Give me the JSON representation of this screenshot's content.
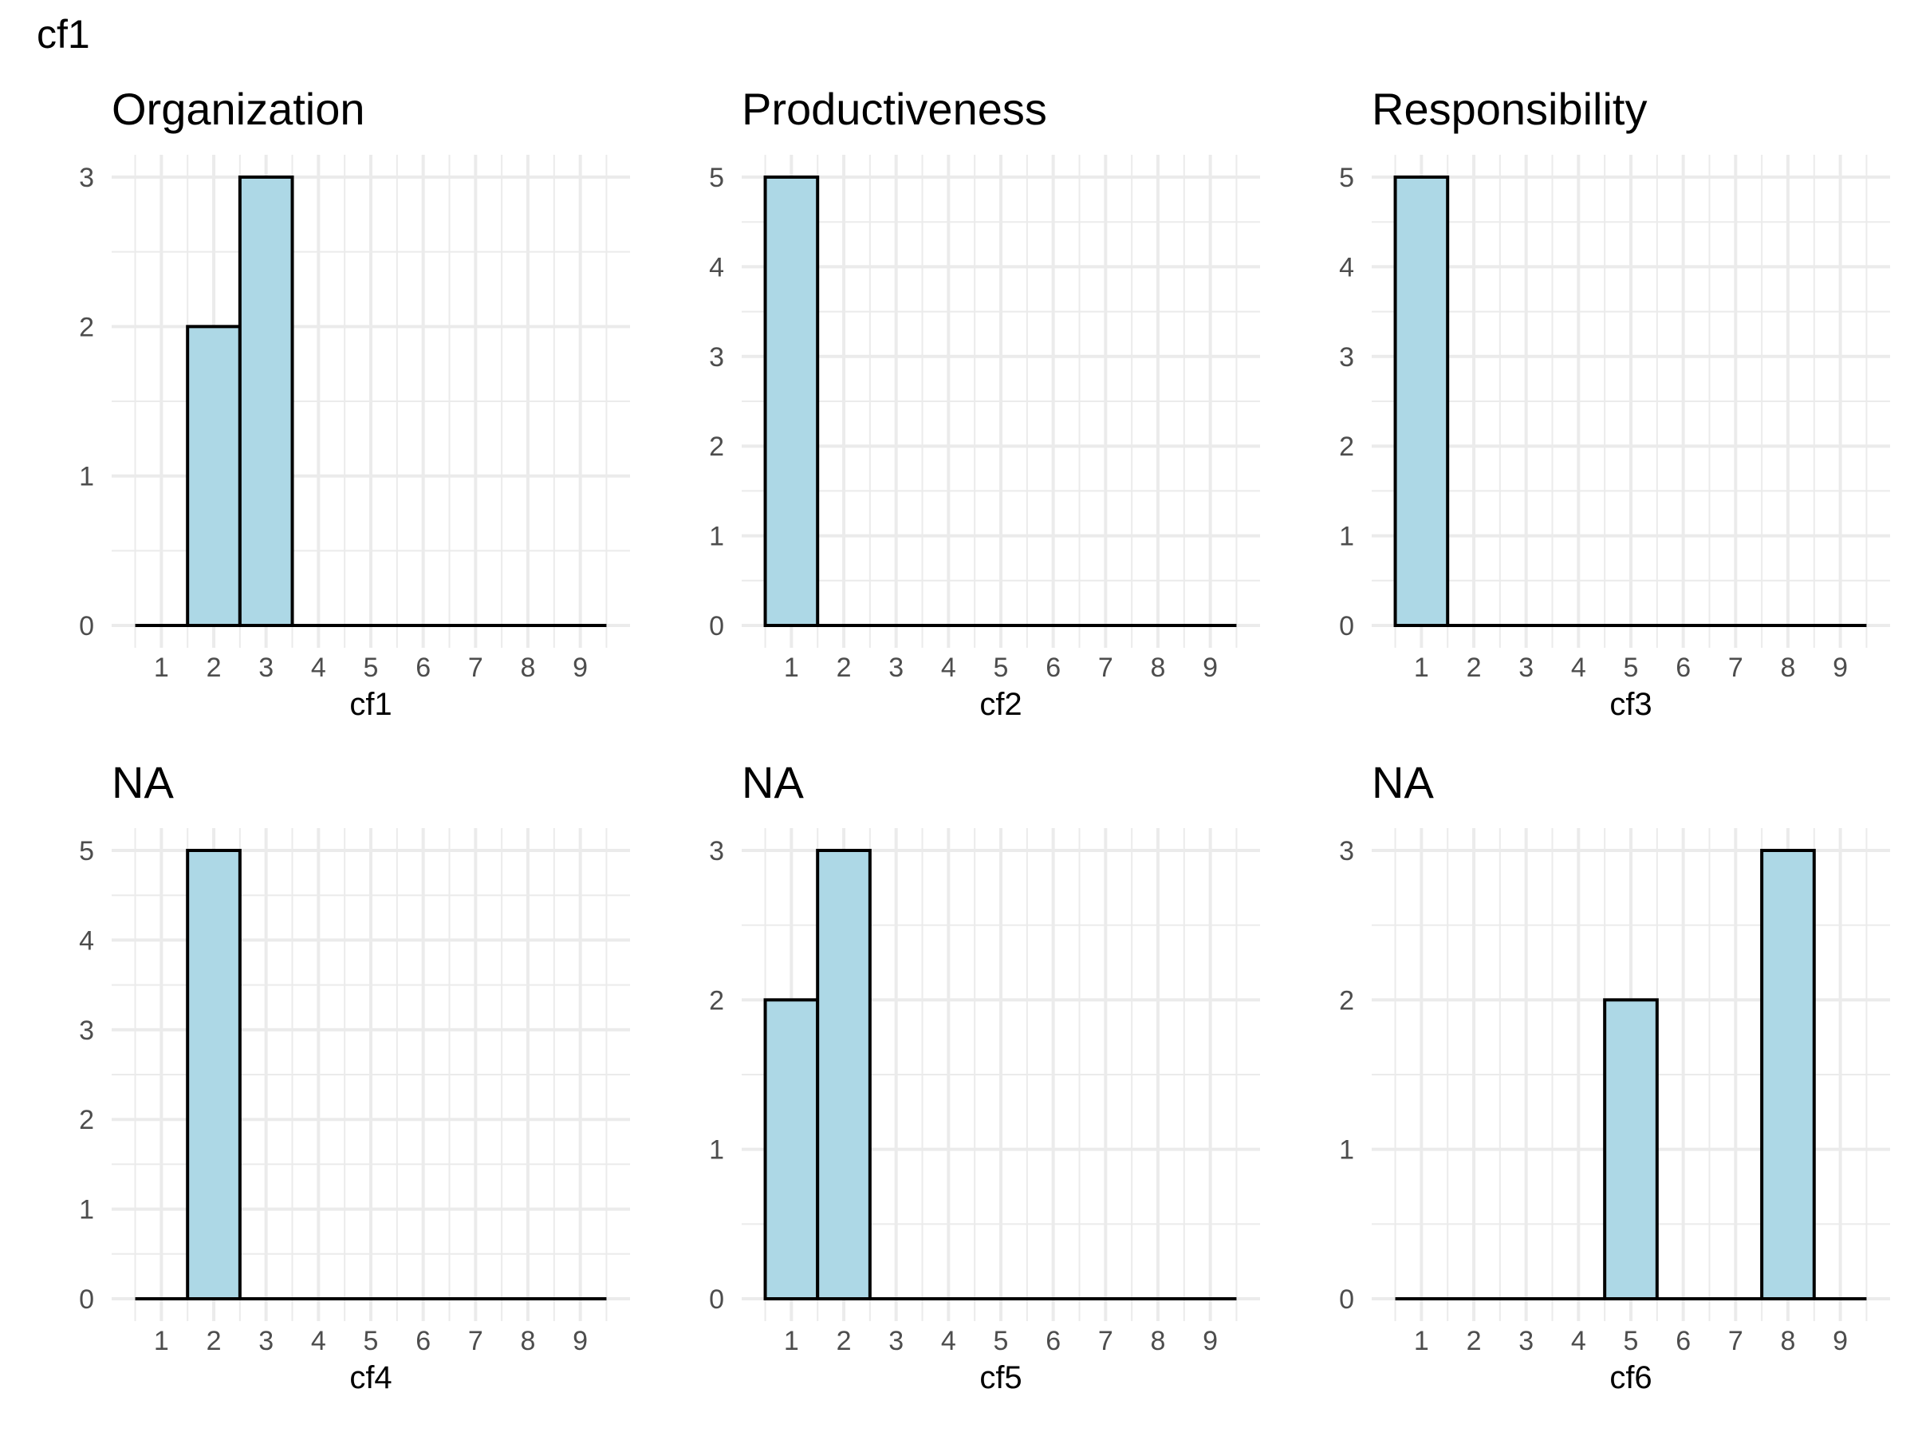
{
  "figure_title": "cf1",
  "bar_fill": "#add8e6",
  "bar_outline": "#000000",
  "chart_data": [
    {
      "type": "bar",
      "title": "Organization",
      "xlabel": "cf1",
      "ylabel": "",
      "categories": [
        "1",
        "2",
        "3",
        "4",
        "5",
        "6",
        "7",
        "8",
        "9"
      ],
      "values": [
        0,
        2,
        3,
        0,
        0,
        0,
        0,
        0,
        0
      ],
      "ylim": [
        0,
        3
      ],
      "yticks": [
        0,
        1,
        2,
        3
      ],
      "grid": true
    },
    {
      "type": "bar",
      "title": "Productiveness",
      "xlabel": "cf2",
      "ylabel": "",
      "categories": [
        "1",
        "2",
        "3",
        "4",
        "5",
        "6",
        "7",
        "8",
        "9"
      ],
      "values": [
        5,
        0,
        0,
        0,
        0,
        0,
        0,
        0,
        0
      ],
      "ylim": [
        0,
        5
      ],
      "yticks": [
        0,
        1,
        2,
        3,
        4,
        5
      ],
      "grid": true
    },
    {
      "type": "bar",
      "title": "Responsibility",
      "xlabel": "cf3",
      "ylabel": "",
      "categories": [
        "1",
        "2",
        "3",
        "4",
        "5",
        "6",
        "7",
        "8",
        "9"
      ],
      "values": [
        5,
        0,
        0,
        0,
        0,
        0,
        0,
        0,
        0
      ],
      "ylim": [
        0,
        5
      ],
      "yticks": [
        0,
        1,
        2,
        3,
        4,
        5
      ],
      "grid": true
    },
    {
      "type": "bar",
      "title": "NA",
      "xlabel": "cf4",
      "ylabel": "",
      "categories": [
        "1",
        "2",
        "3",
        "4",
        "5",
        "6",
        "7",
        "8",
        "9"
      ],
      "values": [
        0,
        5,
        0,
        0,
        0,
        0,
        0,
        0,
        0
      ],
      "ylim": [
        0,
        5
      ],
      "yticks": [
        0,
        1,
        2,
        3,
        4,
        5
      ],
      "grid": true
    },
    {
      "type": "bar",
      "title": "NA",
      "xlabel": "cf5",
      "ylabel": "",
      "categories": [
        "1",
        "2",
        "3",
        "4",
        "5",
        "6",
        "7",
        "8",
        "9"
      ],
      "values": [
        2,
        3,
        0,
        0,
        0,
        0,
        0,
        0,
        0
      ],
      "ylim": [
        0,
        3
      ],
      "yticks": [
        0,
        1,
        2,
        3
      ],
      "grid": true
    },
    {
      "type": "bar",
      "title": "NA",
      "xlabel": "cf6",
      "ylabel": "",
      "categories": [
        "1",
        "2",
        "3",
        "4",
        "5",
        "6",
        "7",
        "8",
        "9"
      ],
      "values": [
        0,
        0,
        0,
        0,
        2,
        0,
        0,
        3,
        0
      ],
      "ylim": [
        0,
        3
      ],
      "yticks": [
        0,
        1,
        2,
        3
      ],
      "grid": true
    }
  ]
}
